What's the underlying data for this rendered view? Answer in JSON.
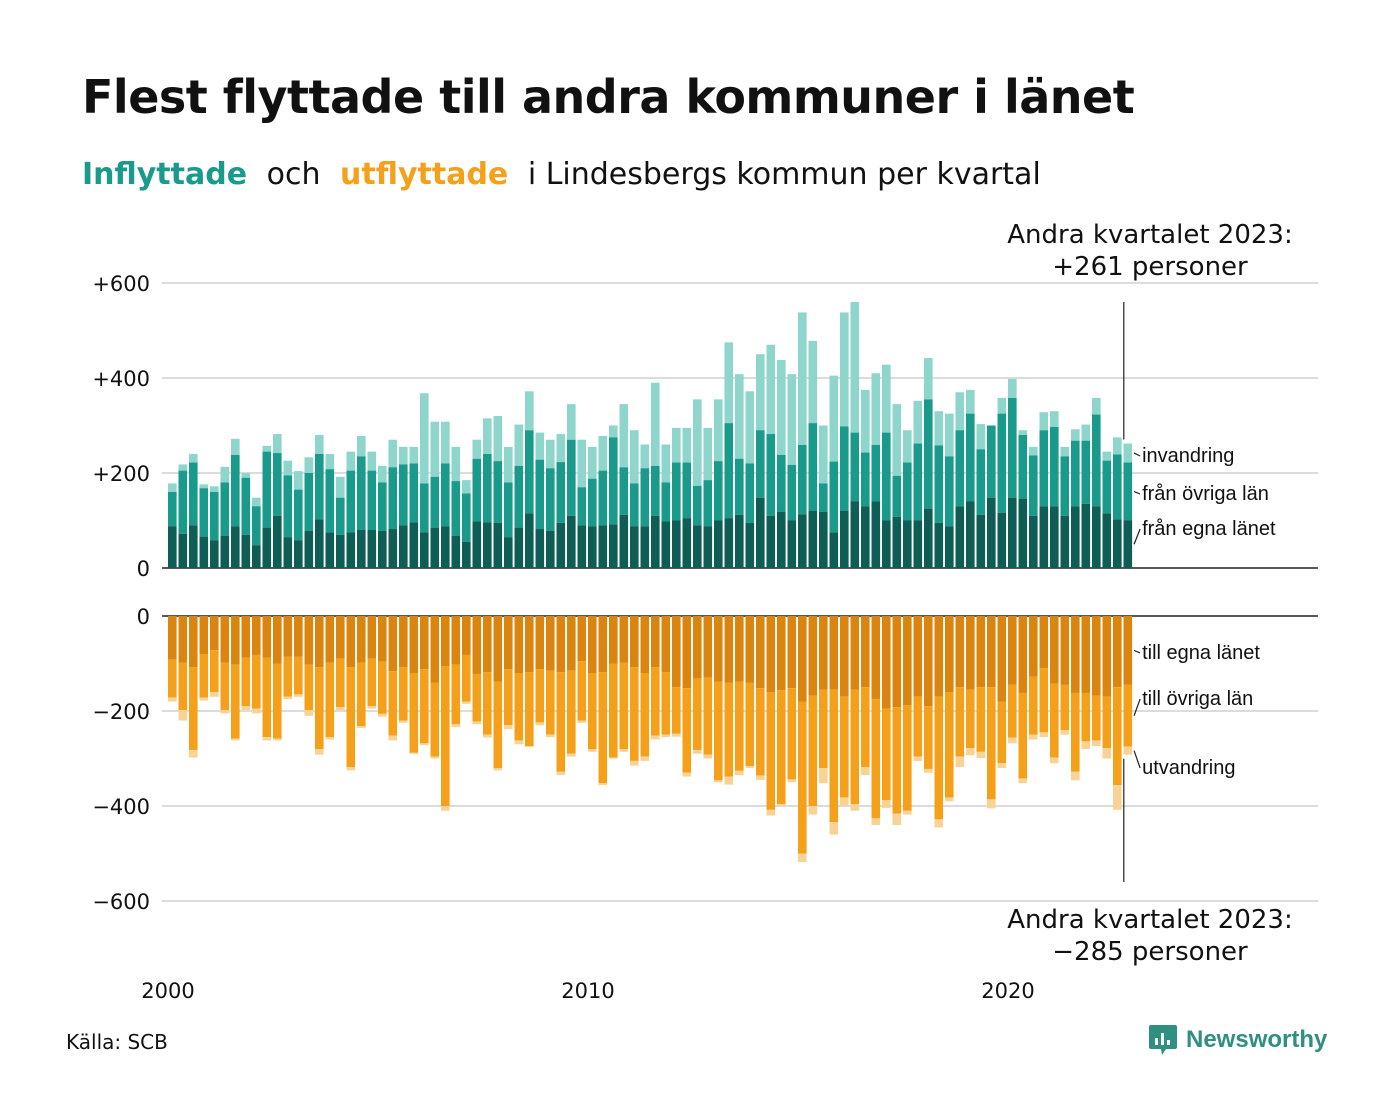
{
  "title": "Flest flyttade till andra kommuner i länet",
  "subtitle": {
    "in_word": "Inflyttade",
    "och": "och",
    "out_word": "utflyttade",
    "rest": "i Lindesbergs kommun per kvartal"
  },
  "source": "Källa: SCB",
  "brand": "Newsworthy",
  "colors": {
    "in_own": "#0f5e55",
    "in_other": "#1a9a8a",
    "in_immig": "#8ed6cc",
    "out_own": "#d9850f",
    "out_other": "#f5a01a",
    "out_emig": "#f8d395"
  },
  "chart_data": {
    "type": "bar",
    "x_start": "2000 Q1",
    "period": "kvartal",
    "x_ticks": [
      "2000",
      "2010",
      "2020"
    ],
    "top_ticks": [
      "+600",
      "+400",
      "+200",
      "0"
    ],
    "bottom_ticks": [
      "0",
      "−200",
      "−400",
      "−600"
    ],
    "ylim_top": [
      0,
      600
    ],
    "ylim_bottom": [
      -600,
      0
    ],
    "grid": true,
    "inflow_totals": [
      178,
      218,
      240,
      176,
      172,
      213,
      272,
      200,
      148,
      257,
      282,
      226,
      204,
      233,
      280,
      240,
      192,
      245,
      278,
      245,
      215,
      270,
      255,
      255,
      368,
      308,
      308,
      255,
      185,
      270,
      315,
      320,
      255,
      302,
      372,
      285,
      270,
      282,
      345,
      270,
      255,
      278,
      300,
      345,
      290,
      260,
      390,
      260,
      295,
      295,
      355,
      295,
      355,
      475,
      408,
      372,
      450,
      470,
      438,
      408,
      538,
      478,
      300,
      405,
      538,
      560,
      375,
      410,
      428,
      345,
      290,
      352,
      442,
      330,
      325,
      370,
      375,
      303,
      300,
      358,
      398,
      290,
      255,
      328,
      330,
      255,
      292,
      302,
      358,
      245,
      275,
      262
    ],
    "inflow_other_line": [
      160,
      205,
      222,
      168,
      160,
      180,
      238,
      190,
      130,
      245,
      242,
      195,
      165,
      200,
      240,
      208,
      148,
      205,
      235,
      205,
      180,
      212,
      218,
      220,
      178,
      192,
      220,
      183,
      157,
      230,
      240,
      225,
      180,
      215,
      290,
      228,
      210,
      223,
      270,
      170,
      188,
      205,
      275,
      212,
      178,
      210,
      215,
      180,
      222,
      222,
      173,
      185,
      225,
      305,
      230,
      220,
      290,
      282,
      238,
      217,
      259,
      305,
      178,
      224,
      298,
      285,
      243,
      259,
      285,
      194,
      222,
      262,
      355,
      258,
      235,
      290,
      325,
      250,
      300,
      325,
      358,
      280,
      237,
      290,
      297,
      235,
      268,
      268,
      323,
      226,
      239,
      222
    ],
    "inflow_own": [
      88,
      72,
      90,
      66,
      58,
      68,
      88,
      70,
      48,
      85,
      110,
      65,
      58,
      78,
      102,
      75,
      70,
      75,
      80,
      80,
      78,
      82,
      90,
      96,
      75,
      85,
      88,
      68,
      55,
      98,
      96,
      95,
      65,
      85,
      115,
      82,
      78,
      95,
      110,
      90,
      88,
      90,
      92,
      112,
      88,
      88,
      110,
      98,
      100,
      105,
      90,
      88,
      100,
      105,
      112,
      95,
      148,
      110,
      118,
      100,
      113,
      120,
      118,
      75,
      120,
      140,
      130,
      140,
      100,
      108,
      100,
      100,
      125,
      95,
      88,
      130,
      140,
      112,
      148,
      116,
      148,
      146,
      110,
      130,
      130,
      110,
      130,
      135,
      130,
      115,
      102,
      100
    ],
    "outflow_totals": [
      -180,
      -220,
      -298,
      -178,
      -170,
      -205,
      -262,
      -198,
      -205,
      -262,
      -262,
      -175,
      -170,
      -210,
      -292,
      -260,
      -198,
      -325,
      -236,
      -195,
      -212,
      -262,
      -225,
      -290,
      -272,
      -300,
      -410,
      -234,
      -185,
      -228,
      -256,
      -325,
      -238,
      -270,
      -276,
      -230,
      -255,
      -335,
      -296,
      -225,
      -286,
      -356,
      -300,
      -286,
      -315,
      -305,
      -260,
      -255,
      -254,
      -338,
      -290,
      -300,
      -350,
      -355,
      -335,
      -320,
      -345,
      -420,
      -400,
      -350,
      -518,
      -418,
      -352,
      -460,
      -400,
      -410,
      -335,
      -440,
      -404,
      -440,
      -418,
      -305,
      -330,
      -445,
      -390,
      -318,
      -293,
      -299,
      -405,
      -320,
      -268,
      -352,
      -260,
      -255,
      -310,
      -250,
      -346,
      -280,
      -274,
      -300,
      -408,
      -292
    ],
    "outflow_other_line": [
      -172,
      -198,
      -282,
      -172,
      -160,
      -198,
      -258,
      -190,
      -195,
      -255,
      -258,
      -170,
      -165,
      -198,
      -280,
      -255,
      -192,
      -318,
      -232,
      -190,
      -206,
      -252,
      -220,
      -288,
      -268,
      -296,
      -400,
      -228,
      -180,
      -222,
      -250,
      -320,
      -230,
      -262,
      -274,
      -224,
      -250,
      -328,
      -290,
      -220,
      -280,
      -352,
      -298,
      -280,
      -305,
      -296,
      -252,
      -250,
      -248,
      -330,
      -282,
      -292,
      -346,
      -338,
      -326,
      -316,
      -336,
      -408,
      -396,
      -344,
      -500,
      -400,
      -320,
      -434,
      -382,
      -396,
      -318,
      -426,
      -388,
      -416,
      -410,
      -296,
      -322,
      -428,
      -382,
      -296,
      -278,
      -286,
      -386,
      -310,
      -256,
      -342,
      -250,
      -245,
      -298,
      -240,
      -328,
      -264,
      -262,
      -278,
      -356,
      -275
    ],
    "outflow_own": [
      -92,
      -98,
      -108,
      -80,
      -72,
      -98,
      -102,
      -88,
      -82,
      -88,
      -100,
      -86,
      -86,
      -102,
      -108,
      -98,
      -90,
      -108,
      -98,
      -90,
      -96,
      -116,
      -108,
      -120,
      -112,
      -140,
      -106,
      -102,
      -82,
      -122,
      -118,
      -138,
      -112,
      -120,
      -118,
      -112,
      -115,
      -118,
      -115,
      -95,
      -120,
      -118,
      -100,
      -98,
      -108,
      -120,
      -108,
      -118,
      -150,
      -152,
      -132,
      -130,
      -138,
      -140,
      -138,
      -140,
      -152,
      -160,
      -156,
      -152,
      -180,
      -168,
      -155,
      -155,
      -170,
      -155,
      -150,
      -175,
      -195,
      -192,
      -188,
      -170,
      -190,
      -170,
      -160,
      -150,
      -155,
      -150,
      -150,
      -180,
      -145,
      -162,
      -128,
      -110,
      -142,
      -145,
      -162,
      -162,
      -168,
      -170,
      -150,
      -145
    ],
    "legend_in": [
      "invandring",
      "från övriga län",
      "från egna länet"
    ],
    "legend_out": [
      "till egna länet",
      "till övriga län",
      "utvandring"
    ],
    "annotation_top": [
      "Andra kvartalet 2023:",
      "+261 personer"
    ],
    "annotation_bottom": [
      "Andra kvartalet 2023:",
      "−285 personer"
    ]
  }
}
